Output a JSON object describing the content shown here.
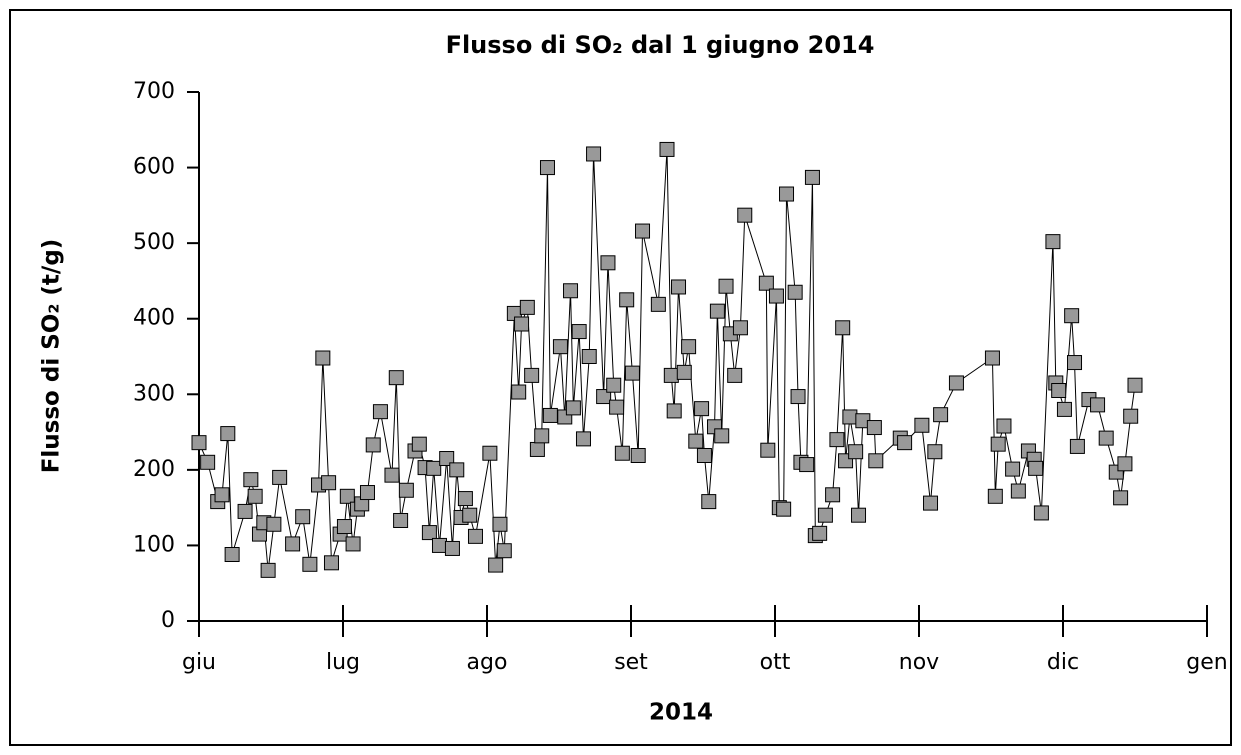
{
  "chart_data": {
    "type": "line",
    "title": "Flusso di SO₂ dal 1 giugno 2014",
    "y_label": "Flusso di SO₂ (t/g)",
    "x_label": "2014",
    "xlim": [
      0,
      7
    ],
    "xticks": [
      {
        "value": 0,
        "label": "giu"
      },
      {
        "value": 1,
        "label": "lug"
      },
      {
        "value": 2,
        "label": "ago"
      },
      {
        "value": 3,
        "label": "set"
      },
      {
        "value": 4,
        "label": "ott"
      },
      {
        "value": 5,
        "label": "nov"
      },
      {
        "value": 6,
        "label": "dic"
      },
      {
        "value": 7,
        "label": "gen"
      }
    ],
    "ylim": [
      0,
      700
    ],
    "yticks": [
      0,
      100,
      200,
      300,
      400,
      500,
      600,
      700
    ],
    "grid": false,
    "line_color": "#000000",
    "series": [
      {
        "color": "#999999",
        "x": [
          0.0,
          0.06,
          0.13,
          0.16,
          0.2,
          0.23,
          0.32,
          0.36,
          0.39,
          0.42,
          0.45,
          0.48,
          0.52,
          0.56,
          0.65,
          0.72,
          0.77,
          0.83,
          0.86,
          0.9,
          0.92,
          0.98,
          1.01,
          1.03,
          1.07,
          1.1,
          1.13,
          1.17,
          1.21,
          1.26,
          1.34,
          1.37,
          1.4,
          1.44,
          1.5,
          1.53,
          1.57,
          1.6,
          1.63,
          1.67,
          1.72,
          1.76,
          1.79,
          1.82,
          1.85,
          1.88,
          1.92,
          2.02,
          2.06,
          2.09,
          2.12,
          2.19,
          2.22,
          2.24,
          2.28,
          2.31,
          2.35,
          2.38,
          2.42,
          2.44,
          2.51,
          2.54,
          2.58,
          2.6,
          2.64,
          2.67,
          2.71,
          2.74,
          2.81,
          2.84,
          2.88,
          2.9,
          2.94,
          2.97,
          3.01,
          3.05,
          3.08,
          3.19,
          3.25,
          3.28,
          3.3,
          3.33,
          3.37,
          3.4,
          3.45,
          3.49,
          3.51,
          3.54,
          3.58,
          3.6,
          3.63,
          3.66,
          3.69,
          3.72,
          3.76,
          3.79,
          3.94,
          3.95,
          4.01,
          4.03,
          4.06,
          4.08,
          4.14,
          4.16,
          4.18,
          4.22,
          4.26,
          4.28,
          4.31,
          4.35,
          4.4,
          4.43,
          4.47,
          4.49,
          4.52,
          4.56,
          4.58,
          4.61,
          4.69,
          4.7,
          4.87,
          4.9,
          5.02,
          5.08,
          5.11,
          5.15,
          5.26,
          5.51,
          5.53,
          5.55,
          5.59,
          5.65,
          5.69,
          5.76,
          5.8,
          5.81,
          5.85,
          5.93,
          5.95,
          5.97,
          6.01,
          6.06,
          6.08,
          6.1,
          6.18,
          6.24,
          6.3,
          6.37,
          6.4,
          6.43,
          6.47,
          6.5
        ],
        "values": [
          236,
          210,
          158,
          167,
          248,
          88,
          145,
          187,
          165,
          115,
          130,
          67,
          128,
          190,
          102,
          138,
          75,
          180,
          348,
          183,
          77,
          115,
          125,
          165,
          102,
          148,
          155,
          170,
          233,
          277,
          193,
          322,
          133,
          173,
          225,
          234,
          203,
          117,
          202,
          100,
          215,
          96,
          200,
          137,
          162,
          140,
          112,
          222,
          74,
          128,
          93,
          407,
          303,
          393,
          415,
          325,
          227,
          245,
          600,
          272,
          363,
          270,
          437,
          282,
          383,
          241,
          350,
          618,
          297,
          474,
          312,
          283,
          222,
          425,
          328,
          219,
          516,
          419,
          624,
          325,
          278,
          442,
          329,
          363,
          238,
          281,
          219,
          158,
          257,
          410,
          245,
          443,
          380,
          325,
          388,
          537,
          447,
          226,
          430,
          150,
          148,
          565,
          435,
          297,
          210,
          207,
          587,
          113,
          116,
          140,
          167,
          240,
          388,
          212,
          270,
          224,
          140,
          265,
          256,
          212,
          242,
          236,
          259,
          156,
          224,
          273,
          315,
          348,
          165,
          234,
          258,
          201,
          172,
          225,
          214,
          202,
          143,
          502,
          315,
          305,
          280,
          404,
          342,
          231,
          293,
          286,
          242,
          197,
          163,
          208,
          271,
          312
        ]
      }
    ]
  }
}
